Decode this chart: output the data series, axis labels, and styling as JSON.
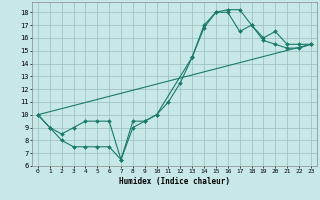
{
  "title": "",
  "xlabel": "Humidex (Indice chaleur)",
  "background_color": "#c8e8e8",
  "grid_color": "#9abcbc",
  "line_color": "#1a7a6a",
  "xlim": [
    -0.5,
    23.5
  ],
  "ylim": [
    6,
    18.8
  ],
  "yticks": [
    6,
    7,
    8,
    9,
    10,
    11,
    12,
    13,
    14,
    15,
    16,
    17,
    18
  ],
  "xticks": [
    0,
    1,
    2,
    3,
    4,
    5,
    6,
    7,
    8,
    9,
    10,
    11,
    12,
    13,
    14,
    15,
    16,
    17,
    18,
    19,
    20,
    21,
    22,
    23
  ],
  "curve1_x": [
    0,
    1,
    2,
    3,
    4,
    5,
    6,
    7,
    8,
    9,
    10,
    11,
    12,
    13,
    14,
    15,
    16,
    17,
    18,
    19,
    20,
    21,
    22,
    23
  ],
  "curve1_y": [
    10,
    9,
    8,
    7.5,
    7.5,
    7.5,
    7.5,
    6.5,
    9.0,
    9.5,
    10,
    11,
    12.5,
    14.5,
    17.0,
    18.0,
    18.2,
    18.2,
    17.0,
    15.8,
    15.5,
    15.2,
    15.2,
    15.5
  ],
  "curve2_x": [
    0,
    1,
    2,
    3,
    4,
    5,
    6,
    7,
    8,
    9,
    10,
    13,
    14,
    15,
    16,
    17,
    18,
    19,
    20,
    21,
    22,
    23
  ],
  "curve2_y": [
    10,
    9,
    8.5,
    9.0,
    9.5,
    9.5,
    9.5,
    6.5,
    9.5,
    9.5,
    10,
    14.5,
    16.8,
    18.0,
    18.0,
    16.5,
    17.0,
    16.0,
    16.5,
    15.5,
    15.5,
    15.5
  ],
  "curve3_x": [
    0,
    23
  ],
  "curve3_y": [
    10,
    15.5
  ]
}
